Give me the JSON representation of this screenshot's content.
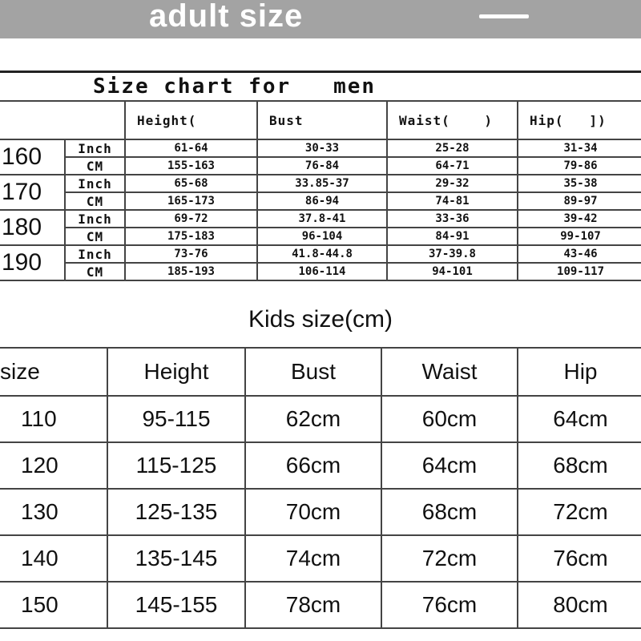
{
  "banner": {
    "title": "adult size"
  },
  "men": {
    "title": "Size chart for   men",
    "headers": [
      "Height(",
      "Bust",
      "Waist(    )",
      "Hip(   ])"
    ],
    "rows": [
      {
        "size": "160",
        "inch": [
          "61-64",
          "30-33",
          "25-28",
          "31-34"
        ],
        "cm": [
          "155-163",
          "76-84",
          "64-71",
          "79-86"
        ]
      },
      {
        "size": "170",
        "inch": [
          "65-68",
          "33.85-37",
          "29-32",
          "35-38"
        ],
        "cm": [
          "165-173",
          "86-94",
          "74-81",
          "89-97"
        ]
      },
      {
        "size": "180",
        "inch": [
          "69-72",
          "37.8-41",
          "33-36",
          "39-42"
        ],
        "cm": [
          "175-183",
          "96-104",
          "84-91",
          "99-107"
        ]
      },
      {
        "size": "190",
        "inch": [
          "73-76",
          "41.8-44.8",
          "37-39.8",
          "43-46"
        ],
        "cm": [
          "185-193",
          "106-114",
          "94-101",
          "109-117"
        ]
      }
    ],
    "unit_inch": "Inch",
    "unit_cm": "CM"
  },
  "kids": {
    "title": "Kids size(cm)",
    "headers": [
      "size",
      "Height",
      "Bust",
      "Waist",
      "Hip"
    ],
    "rows": [
      [
        "110",
        "95-115",
        "62cm",
        "60cm",
        "64cm"
      ],
      [
        "120",
        "115-125",
        "66cm",
        "64cm",
        "68cm"
      ],
      [
        "130",
        "125-135",
        "70cm",
        "68cm",
        "72cm"
      ],
      [
        "140",
        "135-145",
        "74cm",
        "72cm",
        "76cm"
      ],
      [
        "150",
        "145-155",
        "78cm",
        "76cm",
        "80cm"
      ]
    ]
  }
}
